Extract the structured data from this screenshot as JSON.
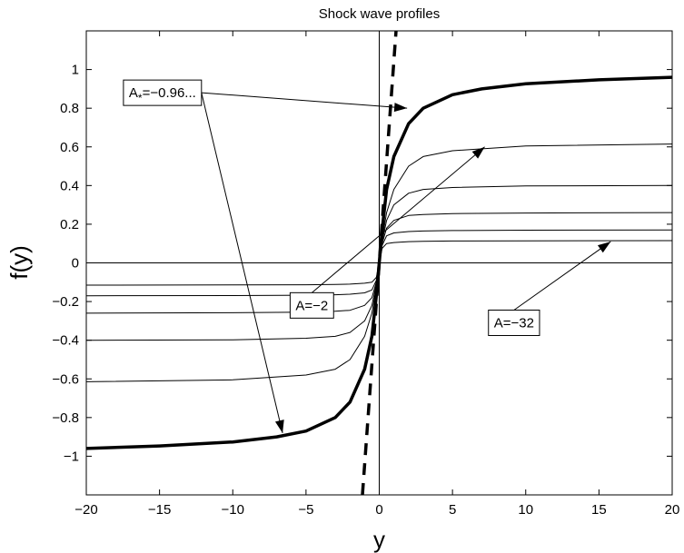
{
  "chart_data": {
    "type": "line",
    "title": "Shock wave profiles",
    "xlabel": "y",
    "ylabel": "f(y)",
    "xlim": [
      -20,
      20
    ],
    "ylim": [
      -1.2,
      1.2
    ],
    "xticks": [
      -20,
      -15,
      -10,
      -5,
      0,
      5,
      10,
      15,
      20
    ],
    "xtick_labels": [
      "−20",
      "−15",
      "−10",
      "−5",
      "0",
      "5",
      "10",
      "15",
      "20"
    ],
    "yticks": [
      -1,
      -0.8,
      -0.6,
      -0.4,
      -0.2,
      0,
      0.2,
      0.4,
      0.6,
      0.8,
      1
    ],
    "ytick_labels": [
      "−1",
      "−0.8",
      "−0.6",
      "−0.4",
      "−0.2",
      "0",
      "0.2",
      "0.4",
      "0.6",
      "0.8",
      "1"
    ],
    "grid": false,
    "series": [
      {
        "style": "thick-solid",
        "x": [
          -20,
          -15,
          -10,
          -7,
          -5,
          -3,
          -2,
          -1,
          -0.5,
          -0.2,
          0,
          0.2,
          0.5,
          1,
          2,
          3,
          5,
          7,
          10,
          15,
          20
        ],
        "values": [
          -0.96,
          -0.947,
          -0.926,
          -0.9,
          -0.87,
          -0.8,
          -0.72,
          -0.55,
          -0.38,
          -0.17,
          0,
          0.17,
          0.38,
          0.55,
          0.72,
          0.8,
          0.87,
          0.9,
          0.926,
          0.947,
          0.96
        ]
      },
      {
        "style": "thin",
        "x": [
          -20,
          -10,
          -5,
          -3,
          -2,
          -1,
          -0.5,
          -0.2,
          0,
          0.2,
          0.5,
          1,
          2,
          3,
          5,
          10,
          20
        ],
        "values": [
          -0.615,
          -0.605,
          -0.58,
          -0.55,
          -0.5,
          -0.38,
          -0.26,
          -0.12,
          0,
          0.12,
          0.26,
          0.38,
          0.5,
          0.55,
          0.58,
          0.605,
          0.615
        ]
      },
      {
        "style": "thin",
        "x": [
          -20,
          -10,
          -5,
          -3,
          -2,
          -1,
          -0.5,
          -0.2,
          0,
          0.2,
          0.5,
          1,
          2,
          3,
          5,
          10,
          20
        ],
        "values": [
          -0.4,
          -0.398,
          -0.39,
          -0.38,
          -0.36,
          -0.3,
          -0.22,
          -0.11,
          0,
          0.11,
          0.22,
          0.3,
          0.36,
          0.38,
          0.39,
          0.398,
          0.4
        ]
      },
      {
        "style": "thin",
        "x": [
          -20,
          -10,
          -5,
          -3,
          -2,
          -1,
          -0.5,
          -0.2,
          0,
          0.2,
          0.5,
          1,
          2,
          3,
          5,
          10,
          20
        ],
        "values": [
          -0.26,
          -0.258,
          -0.255,
          -0.25,
          -0.245,
          -0.22,
          -0.18,
          -0.1,
          0,
          0.1,
          0.18,
          0.22,
          0.245,
          0.25,
          0.255,
          0.258,
          0.26
        ]
      },
      {
        "style": "thin",
        "x": [
          -20,
          -10,
          -5,
          -3,
          -2,
          -1,
          -0.5,
          -0.2,
          0,
          0.2,
          0.5,
          1,
          2,
          3,
          5,
          10,
          20
        ],
        "values": [
          -0.17,
          -0.169,
          -0.167,
          -0.165,
          -0.162,
          -0.155,
          -0.14,
          -0.09,
          0,
          0.09,
          0.14,
          0.155,
          0.162,
          0.165,
          0.167,
          0.169,
          0.17
        ]
      },
      {
        "style": "thin",
        "x": [
          -20,
          -10,
          -5,
          -3,
          -2,
          -1,
          -0.5,
          -0.2,
          0,
          0.2,
          0.5,
          1,
          2,
          3,
          5,
          10,
          20
        ],
        "values": [
          -0.115,
          -0.114,
          -0.113,
          -0.112,
          -0.11,
          -0.105,
          -0.1,
          -0.075,
          0,
          0.075,
          0.1,
          0.105,
          0.11,
          0.112,
          0.113,
          0.114,
          0.115
        ]
      },
      {
        "style": "dashed",
        "x": [
          -1.15,
          1.15
        ],
        "values": [
          -1.2,
          1.2
        ]
      }
    ],
    "annotations": [
      {
        "label_main": "A",
        "label_sub": "*",
        "label_rest": "=−0.96...",
        "box_x": -14.8,
        "box_y": 0.88,
        "arrows": [
          {
            "x": 1.9,
            "y": 0.8
          },
          {
            "x": -6.6,
            "y": -0.88
          }
        ]
      },
      {
        "label_main": "A=−2",
        "label_sub": "",
        "label_rest": "",
        "box_x": -4.6,
        "box_y": -0.22,
        "arrows": [
          {
            "x": 7.2,
            "y": 0.6
          }
        ]
      },
      {
        "label_main": "A=−32",
        "label_sub": "",
        "label_rest": "",
        "box_x": 9.2,
        "box_y": -0.31,
        "arrows": [
          {
            "x": 15.8,
            "y": 0.11
          }
        ]
      }
    ]
  }
}
